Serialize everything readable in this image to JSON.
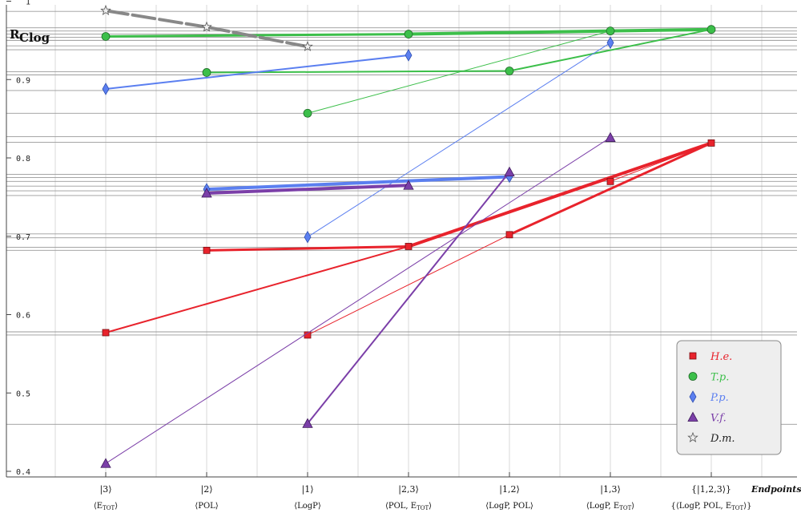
{
  "chart_data": {
    "type": "line",
    "ylabel_main": "R",
    "ylabel_sub": "Clog",
    "ylim": [
      0.4,
      1.0
    ],
    "yticks": [
      {
        "v": 1.0,
        "label": "1"
      },
      {
        "v": 0.9,
        "label": "0.9"
      },
      {
        "v": 0.8,
        "label": "0.8"
      },
      {
        "v": 0.7,
        "label": "0.7"
      },
      {
        "v": 0.6,
        "label": "0.6"
      },
      {
        "v": 0.5,
        "label": "0.5"
      },
      {
        "v": 0.4,
        "label": "0.4"
      }
    ],
    "categories": [
      {
        "top": "|3⟩",
        "bottom": "⟨E",
        "bottom_sub": "TOT",
        "bottom_end": "⟩"
      },
      {
        "top": "|2⟩",
        "bottom": "⟨POL⟩",
        "bottom_sub": "",
        "bottom_end": ""
      },
      {
        "top": "|1⟩",
        "bottom": "⟨LogP⟩",
        "bottom_sub": "",
        "bottom_end": ""
      },
      {
        "top": "|2,3⟩",
        "bottom": "⟨POL, E",
        "bottom_sub": "TOT",
        "bottom_end": "⟩"
      },
      {
        "top": "|1,2⟩",
        "bottom": "⟨LogP, POL⟩",
        "bottom_sub": "",
        "bottom_end": ""
      },
      {
        "top": "|1,3⟩",
        "bottom": "⟨LogP, E",
        "bottom_sub": "TOT",
        "bottom_end": "⟩"
      },
      {
        "top": "{|1,2,3⟩}",
        "bottom": "{⟨LogP, POL, E",
        "bottom_sub": "TOT",
        "bottom_end": "⟩}"
      }
    ],
    "endpoints_label": "Endpoints",
    "hlines": [
      0.987,
      0.966,
      0.962,
      0.958,
      0.954,
      0.95,
      0.943,
      0.938,
      0.91,
      0.906,
      0.886,
      0.857,
      0.827,
      0.82,
      0.779,
      0.775,
      0.77,
      0.764,
      0.758,
      0.752,
      0.703,
      0.698,
      0.686,
      0.682,
      0.578,
      0.574,
      0.46
    ],
    "series": [
      {
        "name": "H.e.",
        "color": "#e8232c",
        "marker": "square",
        "points": [
          {
            "c": 0,
            "y": 0.577,
            "pos": "start"
          },
          {
            "c": 1,
            "y": 0.682,
            "pos": "start"
          },
          {
            "c": 2,
            "y": 0.574,
            "pos": "start"
          },
          {
            "c": 3,
            "y": 0.687,
            "pos": "mid"
          },
          {
            "c": 4,
            "y": 0.702,
            "pos": "mid"
          },
          {
            "c": 5,
            "y": 0.77,
            "pos": "mid"
          },
          {
            "c": 6,
            "y": 0.819,
            "pos": "mid"
          }
        ],
        "segments": [
          [
            0,
            3,
            2
          ],
          [
            1,
            3,
            3
          ],
          [
            2,
            4,
            1
          ],
          [
            3,
            6,
            4
          ],
          [
            4,
            6,
            3
          ],
          [
            5,
            6,
            1
          ]
        ]
      },
      {
        "name": "T.p.",
        "color": "#3cbf4a",
        "marker": "circle",
        "points": [
          {
            "c": 0,
            "y": 0.955,
            "pos": "start"
          },
          {
            "c": 1,
            "y": 0.909,
            "pos": "start"
          },
          {
            "c": 2,
            "y": 0.857,
            "pos": "start"
          },
          {
            "c": 3,
            "y": 0.958,
            "pos": "mid"
          },
          {
            "c": 4,
            "y": 0.911,
            "pos": "mid"
          },
          {
            "c": 5,
            "y": 0.962,
            "pos": "mid"
          },
          {
            "c": 6,
            "y": 0.964,
            "pos": "mid"
          }
        ],
        "segments": [
          [
            0,
            3,
            3
          ],
          [
            1,
            4,
            2
          ],
          [
            2,
            5,
            1
          ],
          [
            3,
            6,
            4
          ],
          [
            4,
            6,
            2
          ],
          [
            5,
            6,
            2
          ]
        ]
      },
      {
        "name": "P.p.",
        "color": "#5b7ff0",
        "marker": "diamond",
        "points": [
          {
            "c": 0,
            "y": 0.888,
            "pos": "start"
          },
          {
            "c": 1,
            "y": 0.76,
            "pos": "start"
          },
          {
            "c": 2,
            "y": 0.699,
            "pos": "start"
          },
          {
            "c": 3,
            "y": 0.931,
            "pos": "mid"
          },
          {
            "c": 4,
            "y": 0.776,
            "pos": "mid"
          },
          {
            "c": 5,
            "y": 0.947,
            "pos": "mid"
          }
        ],
        "segments": [
          [
            0,
            3,
            2
          ],
          [
            1,
            4,
            4
          ],
          [
            2,
            5,
            1
          ]
        ]
      },
      {
        "name": "V.f.",
        "color": "#7b3fa8",
        "marker": "triangle",
        "points": [
          {
            "c": 0,
            "y": 0.41,
            "pos": "start"
          },
          {
            "c": 1,
            "y": 0.755,
            "pos": "start"
          },
          {
            "c": 2,
            "y": 0.461,
            "pos": "start"
          },
          {
            "c": 3,
            "y": 0.765,
            "pos": "mid"
          },
          {
            "c": 4,
            "y": 0.782,
            "pos": "mid"
          },
          {
            "c": 5,
            "y": 0.826,
            "pos": "mid"
          }
        ],
        "segments": [
          [
            0,
            5,
            1
          ],
          [
            1,
            3,
            4
          ],
          [
            2,
            4,
            2
          ]
        ]
      },
      {
        "name": "D.m.",
        "color": "#888888",
        "marker": "star",
        "points": [
          {
            "c": 0,
            "y": 0.988,
            "pos": "start"
          },
          {
            "c": 1,
            "y": 0.967,
            "pos": "start"
          },
          {
            "c": 2,
            "y": 0.942,
            "pos": "start"
          }
        ],
        "segments": [
          [
            0,
            1,
            4
          ],
          [
            1,
            2,
            4
          ]
        ]
      }
    ],
    "legend_placement": "bottom-right",
    "grid": true
  }
}
